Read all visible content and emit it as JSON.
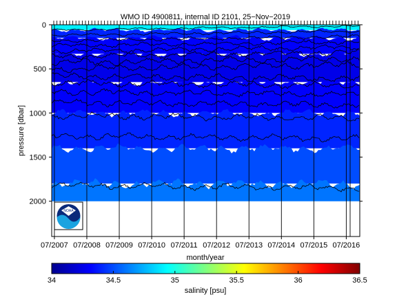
{
  "chart_data": {
    "type": "heatmap",
    "title": "WMO ID 4900811, internal ID 2101, 25−Nov−2019",
    "xlabel": "month/year",
    "ylabel": "pressure [dbar]",
    "x_tick_labels": [
      "07/2007",
      "07/2008",
      "07/2009",
      "07/2010",
      "07/2011",
      "07/2012",
      "07/2013",
      "07/2014",
      "07/2015",
      "07/2016"
    ],
    "x_range": [
      "2007-06",
      "2016-12"
    ],
    "y_ticks": [
      0,
      500,
      1000,
      1500,
      2000
    ],
    "y_range": [
      0,
      2400
    ],
    "y_reversed": true,
    "max_profile_depth_dbar": 2000,
    "colorbar": {
      "label": "salinity [psu]",
      "range": [
        34,
        36.5
      ],
      "ticks": [
        "34",
        "34.5",
        "35",
        "35.5",
        "36",
        "36.5"
      ],
      "colormap": "jet"
    },
    "salinity_layers": [
      {
        "top_dbar": 0,
        "bottom_dbar": 60,
        "salinity": 34.9
      },
      {
        "top_dbar": 60,
        "bottom_dbar": 150,
        "salinity": 34.4
      },
      {
        "top_dbar": 150,
        "bottom_dbar": 330,
        "salinity": 34.3
      },
      {
        "top_dbar": 330,
        "bottom_dbar": 650,
        "salinity": 34.25
      },
      {
        "top_dbar": 650,
        "bottom_dbar": 1000,
        "salinity": 34.3
      },
      {
        "top_dbar": 1000,
        "bottom_dbar": 1400,
        "salinity": 34.4
      },
      {
        "top_dbar": 1400,
        "bottom_dbar": 1800,
        "salinity": 34.5
      },
      {
        "top_dbar": 1800,
        "bottom_dbar": 2000,
        "salinity": 34.6
      }
    ],
    "contour_depths_dbar": [
      60,
      120,
      180,
      240,
      300,
      360,
      430,
      500,
      580,
      660,
      760,
      880,
      1030,
      1260,
      1820
    ],
    "annotations": [
      "NOAA logo"
    ]
  },
  "logo": {
    "text": "NOAA"
  }
}
